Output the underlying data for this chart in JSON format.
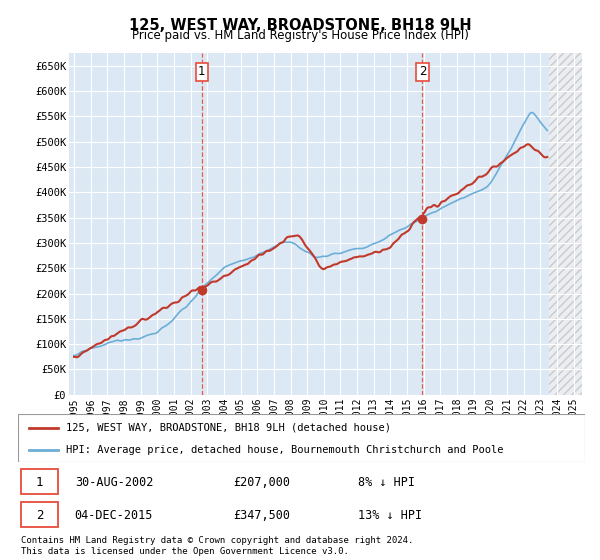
{
  "title": "125, WEST WAY, BROADSTONE, BH18 9LH",
  "subtitle": "Price paid vs. HM Land Registry's House Price Index (HPI)",
  "ylim": [
    0,
    675000
  ],
  "yticks": [
    0,
    50000,
    100000,
    150000,
    200000,
    250000,
    300000,
    350000,
    400000,
    450000,
    500000,
    550000,
    600000,
    650000
  ],
  "ytick_labels": [
    "£0",
    "£50K",
    "£100K",
    "£150K",
    "£200K",
    "£250K",
    "£300K",
    "£350K",
    "£400K",
    "£450K",
    "£500K",
    "£550K",
    "£600K",
    "£650K"
  ],
  "hpi_color": "#6baed6",
  "price_color": "#c0392b",
  "dashed_color": "#e74c3c",
  "background_color": "#dce9f5",
  "grid_color": "#ffffff",
  "transaction1": {
    "date": "30-AUG-2002",
    "price": "£207,000",
    "label": "1",
    "pct": "8% ↓ HPI",
    "year": 2002.67
  },
  "transaction2": {
    "date": "04-DEC-2015",
    "price": "£347,500",
    "label": "2",
    "pct": "13% ↓ HPI",
    "year": 2015.92
  },
  "legend_line1": "125, WEST WAY, BROADSTONE, BH18 9LH (detached house)",
  "legend_line2": "HPI: Average price, detached house, Bournemouth Christchurch and Poole",
  "footnote1": "Contains HM Land Registry data © Crown copyright and database right 2024.",
  "footnote2": "This data is licensed under the Open Government Licence v3.0.",
  "data_end_year": 2023.5,
  "xlim_start": 1994.7,
  "xlim_end": 2025.5
}
